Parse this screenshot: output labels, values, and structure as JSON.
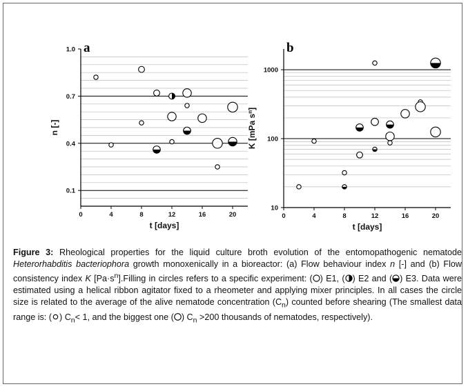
{
  "chart_data": [
    {
      "type": "scatter",
      "panel": "a",
      "xlabel": "t [days]",
      "ylabel": "n [-]",
      "xlim": [
        0,
        22
      ],
      "ylim": [
        0.0,
        1.0
      ],
      "xticks": [
        "0",
        "4",
        "8",
        "12",
        "16",
        "20"
      ],
      "yticks": [
        "0.1",
        "0.4",
        "0.7",
        "1.0"
      ],
      "points": [
        {
          "x": 2,
          "y": 0.82,
          "exp": "E1",
          "size": 1
        },
        {
          "x": 4,
          "y": 0.39,
          "exp": "E1",
          "size": 1
        },
        {
          "x": 8,
          "y": 0.87,
          "exp": "E1",
          "size": 2
        },
        {
          "x": 8,
          "y": 0.53,
          "exp": "E1",
          "size": 1
        },
        {
          "x": 10,
          "y": 0.72,
          "exp": "E1",
          "size": 2
        },
        {
          "x": 10,
          "y": 0.36,
          "exp": "E3",
          "size": 3
        },
        {
          "x": 12,
          "y": 0.7,
          "exp": "E2",
          "size": 2
        },
        {
          "x": 12,
          "y": 0.57,
          "exp": "E1",
          "size": 4
        },
        {
          "x": 12,
          "y": 0.41,
          "exp": "E1",
          "size": 1
        },
        {
          "x": 14,
          "y": 0.72,
          "exp": "E1",
          "size": 4
        },
        {
          "x": 14,
          "y": 0.64,
          "exp": "E1",
          "size": 1
        },
        {
          "x": 14,
          "y": 0.48,
          "exp": "E3",
          "size": 3
        },
        {
          "x": 16,
          "y": 0.56,
          "exp": "E1",
          "size": 4
        },
        {
          "x": 18,
          "y": 0.4,
          "exp": "E1",
          "size": 5
        },
        {
          "x": 18,
          "y": 0.25,
          "exp": "E1",
          "size": 1
        },
        {
          "x": 20,
          "y": 0.63,
          "exp": "E1",
          "size": 5
        },
        {
          "x": 20,
          "y": 0.41,
          "exp": "E3",
          "size": 4
        }
      ]
    },
    {
      "type": "scatter",
      "panel": "b",
      "xlabel": "t [days]",
      "ylabel": "K [mPa s^n]",
      "ylabel_main": "K [mPa s",
      "ylabel_sup": "n",
      "ylabel_end": "]",
      "yscale": "log",
      "xlim": [
        0,
        22
      ],
      "ylim": [
        10,
        2000
      ],
      "xticks": [
        "0",
        "4",
        "8",
        "12",
        "16",
        "20"
      ],
      "yticks": [
        "10",
        "100",
        "1000"
      ],
      "points": [
        {
          "x": 2,
          "y": 20,
          "exp": "E1",
          "size": 1
        },
        {
          "x": 4,
          "y": 92,
          "exp": "E1",
          "size": 1
        },
        {
          "x": 8,
          "y": 32,
          "exp": "E1",
          "size": 1
        },
        {
          "x": 8,
          "y": 20,
          "exp": "E3",
          "size": 1
        },
        {
          "x": 10,
          "y": 145,
          "exp": "E3",
          "size": 3
        },
        {
          "x": 10,
          "y": 58,
          "exp": "E1",
          "size": 2
        },
        {
          "x": 12,
          "y": 1250,
          "exp": "E1",
          "size": 1
        },
        {
          "x": 12,
          "y": 175,
          "exp": "E1",
          "size": 3
        },
        {
          "x": 12,
          "y": 70,
          "exp": "E3",
          "size": 1
        },
        {
          "x": 14,
          "y": 160,
          "exp": "E3",
          "size": 3
        },
        {
          "x": 14,
          "y": 108,
          "exp": "E1",
          "size": 4
        },
        {
          "x": 14,
          "y": 87,
          "exp": "E1",
          "size": 1
        },
        {
          "x": 16,
          "y": 230,
          "exp": "E1",
          "size": 4
        },
        {
          "x": 18,
          "y": 340,
          "exp": "E1",
          "size": 1
        },
        {
          "x": 18,
          "y": 290,
          "exp": "E1",
          "size": 5
        },
        {
          "x": 20,
          "y": 1250,
          "exp": "E3",
          "size": 5
        },
        {
          "x": 20,
          "y": 125,
          "exp": "E1",
          "size": 5
        }
      ]
    }
  ],
  "caption": {
    "figure_label": "Figure 3:",
    "p1": " Rheological properties for the liquid culture broth evolution of the entomopathogenic nematode ",
    "species": "Heterorhabditis bacteriophora",
    "p2": " growth monoxenically in a bioreactor: (a) Flow behaviour index ",
    "n_sym": "n",
    "p3": " [-] and (b) Flow consistency index ",
    "k_sym": "K",
    "p4": " [Pa·s",
    "k_sup": "n",
    "p5": "].Filling in circles refers to a specific experiment: (",
    "e1": ") E1, (",
    "e2": ") E2 and (",
    "e3": ") E3. Data were estimated using a helical ribbon agitator fixed to a rheometer and applying mixer principles. In all cases the circle size is related to the average of the alive nematode concentration (C",
    "cn_sub": "n",
    "p6": ") counted before shearing (The smallest data range is: (",
    "p7": ") C",
    "cn_sub2": "n",
    "p8": "< 1, and the biggest one (",
    "p9": ") C",
    "cn_sub3": "n",
    "p10": " >200  thousands of nematodes, respectively)."
  }
}
